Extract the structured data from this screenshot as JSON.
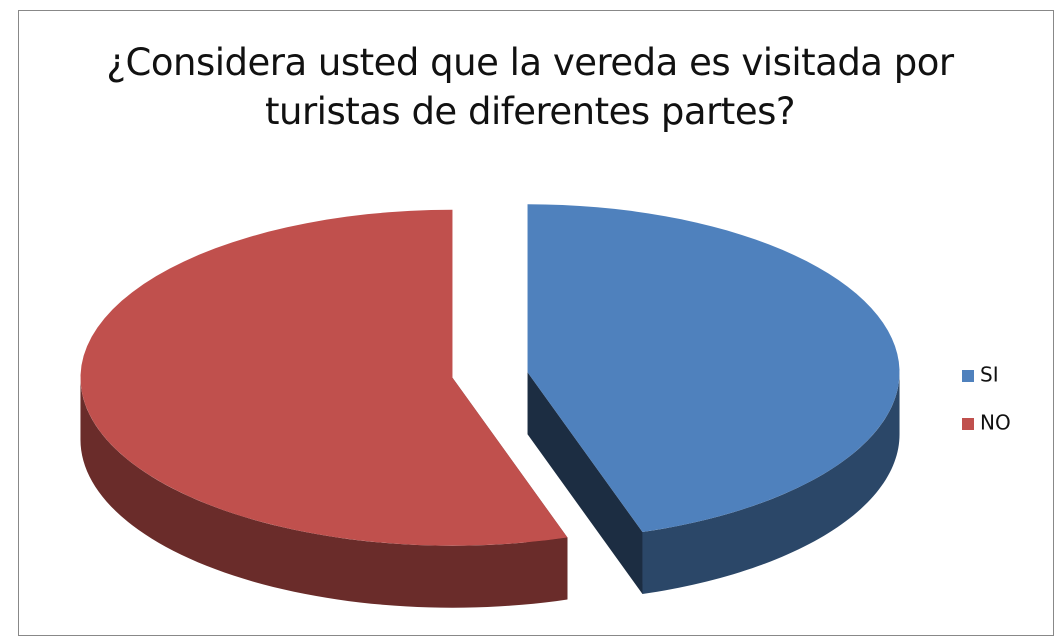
{
  "chart_data": {
    "type": "pie3d",
    "title": "¿Considera usted que la vereda es visitada por turistas de diferentes partes?",
    "categories": [
      "SI",
      "NO"
    ],
    "values": [
      45,
      55
    ],
    "colors": [
      "#4f81bd",
      "#c0504d"
    ],
    "legend": "right"
  }
}
